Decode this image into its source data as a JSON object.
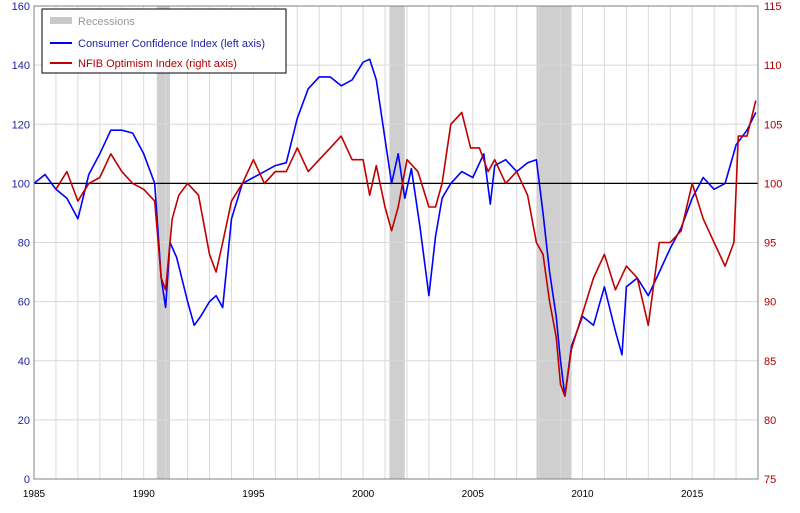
{
  "chart_data": {
    "type": "line",
    "title": "",
    "grid": true,
    "x_range": [
      1985,
      2018
    ],
    "x_ticks": [
      "1985",
      "1990",
      "1995",
      "2000",
      "2005",
      "2010",
      "2015"
    ],
    "left_axis": {
      "range": [
        0,
        160
      ],
      "ticks": [
        "0",
        "20",
        "40",
        "60",
        "80",
        "100",
        "120",
        "140",
        "160"
      ],
      "color": "#1f1f9f"
    },
    "right_axis": {
      "range": [
        75,
        115
      ],
      "ticks": [
        "75",
        "80",
        "85",
        "90",
        "95",
        "100",
        "105",
        "110",
        "115"
      ],
      "color": "#b00000"
    },
    "reference_line": {
      "axis": "left",
      "value": 100
    },
    "legend": {
      "placement": "top-left",
      "recessions_label": "Recessions",
      "series1_label": "Consumer Confidence Index (left axis)",
      "series2_label": "NFIB Optimism Index (right axis)"
    },
    "recessions": [
      {
        "start": 1990.6,
        "end": 1991.2
      },
      {
        "start": 2001.2,
        "end": 2001.9
      },
      {
        "start": 2007.9,
        "end": 2009.5
      }
    ],
    "series": [
      {
        "name": "Consumer Confidence Index (left axis)",
        "axis": "left",
        "color": "#0000ff",
        "x": [
          1985.0,
          1985.5,
          1986.0,
          1986.5,
          1987.0,
          1987.5,
          1988.0,
          1988.5,
          1989.0,
          1989.5,
          1990.0,
          1990.5,
          1990.8,
          1991.0,
          1991.2,
          1991.5,
          1992.0,
          1992.3,
          1992.6,
          1993.0,
          1993.3,
          1993.6,
          1994.0,
          1994.5,
          1995.0,
          1995.5,
          1996.0,
          1996.5,
          1997.0,
          1997.5,
          1998.0,
          1998.5,
          1999.0,
          1999.5,
          2000.0,
          2000.3,
          2000.6,
          2001.0,
          2001.3,
          2001.6,
          2001.9,
          2002.2,
          2002.6,
          2003.0,
          2003.3,
          2003.6,
          2004.0,
          2004.5,
          2005.0,
          2005.5,
          2005.8,
          2006.0,
          2006.5,
          2007.0,
          2007.5,
          2007.9,
          2008.2,
          2008.5,
          2008.8,
          2009.0,
          2009.2,
          2009.5,
          2010.0,
          2010.5,
          2011.0,
          2011.5,
          2011.8,
          2012.0,
          2012.5,
          2013.0,
          2013.5,
          2014.0,
          2014.5,
          2015.0,
          2015.5,
          2016.0,
          2016.5,
          2017.0,
          2017.5,
          2017.9
        ],
        "values": [
          100,
          103,
          98,
          95,
          88,
          103,
          110,
          118,
          118,
          117,
          110,
          100,
          68,
          58,
          80,
          75,
          60,
          52,
          55,
          60,
          62,
          58,
          88,
          100,
          102,
          104,
          106,
          107,
          122,
          132,
          136,
          136,
          133,
          135,
          141,
          142,
          135,
          115,
          100,
          110,
          95,
          105,
          85,
          62,
          82,
          95,
          100,
          104,
          102,
          110,
          93,
          106,
          108,
          104,
          107,
          108,
          90,
          70,
          55,
          40,
          28,
          45,
          55,
          52,
          65,
          50,
          42,
          65,
          68,
          62,
          70,
          78,
          85,
          95,
          102,
          98,
          100,
          113,
          118,
          124
        ]
      },
      {
        "name": "NFIB Optimism Index (right axis)",
        "axis": "right",
        "color": "#c00000",
        "x": [
          1986.0,
          1986.5,
          1987.0,
          1987.5,
          1988.0,
          1988.5,
          1989.0,
          1989.5,
          1990.0,
          1990.5,
          1990.8,
          1991.0,
          1991.3,
          1991.6,
          1992.0,
          1992.5,
          1993.0,
          1993.3,
          1993.6,
          1994.0,
          1994.5,
          1995.0,
          1995.5,
          1996.0,
          1996.5,
          1997.0,
          1997.5,
          1998.0,
          1998.5,
          1999.0,
          1999.5,
          2000.0,
          2000.3,
          2000.6,
          2001.0,
          2001.3,
          2001.6,
          2002.0,
          2002.5,
          2003.0,
          2003.3,
          2003.6,
          2004.0,
          2004.5,
          2004.9,
          2005.3,
          2005.7,
          2006.0,
          2006.5,
          2007.0,
          2007.5,
          2007.9,
          2008.2,
          2008.5,
          2008.8,
          2009.0,
          2009.2,
          2009.5,
          2010.0,
          2010.5,
          2011.0,
          2011.5,
          2012.0,
          2012.5,
          2013.0,
          2013.5,
          2014.0,
          2014.5,
          2015.0,
          2015.5,
          2016.0,
          2016.5,
          2016.9,
          2017.1,
          2017.5,
          2017.9
        ],
        "values": [
          99.5,
          101,
          98.5,
          100,
          100.5,
          102.5,
          101,
          100,
          99.5,
          98.5,
          92,
          91,
          97,
          99,
          100,
          99,
          94,
          92.5,
          95,
          98.5,
          100,
          102,
          100,
          101,
          101,
          103,
          101,
          102,
          103,
          104,
          102,
          102,
          99,
          101.5,
          98,
          96,
          98,
          102,
          101,
          98,
          98,
          100,
          105,
          106,
          103,
          103,
          101,
          102,
          100,
          101,
          99,
          95,
          94,
          90,
          87,
          83,
          82,
          86,
          89,
          92,
          94,
          91,
          93,
          92,
          88,
          95,
          95,
          96,
          100,
          97,
          95,
          93,
          95,
          104,
          104,
          107
        ]
      }
    ]
  }
}
